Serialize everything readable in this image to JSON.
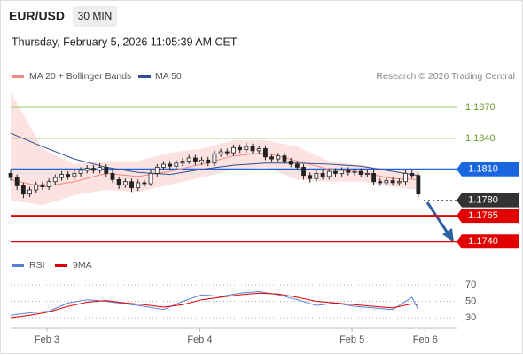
{
  "header": {
    "symbol": "EUR/USD",
    "timeframe": "30 MIN",
    "datetime": "Thursday, February 5, 2026 11:05:39 AM CET"
  },
  "chart_data": [
    {
      "type": "candlestick",
      "source": "Research © 2026 Trading Central",
      "xlim": [
        0,
        70
      ],
      "ylim": [
        1.1729,
        1.1888
      ],
      "open": [
        1.1806,
        1.1802,
        1.1794,
        1.1786,
        1.179,
        1.1795,
        1.1793,
        1.1798,
        1.1802,
        1.1805,
        1.1803,
        1.1806,
        1.1809,
        1.1811,
        1.1809,
        1.1812,
        1.1806,
        1.18,
        1.1795,
        1.1798,
        1.1792,
        1.1797,
        1.1796,
        1.1806,
        1.1812,
        1.1815,
        1.1813,
        1.1816,
        1.1818,
        1.1821,
        1.1817,
        1.1819,
        1.1816,
        1.1825,
        1.1827,
        1.1826,
        1.1831,
        1.1829,
        1.1832,
        1.1828,
        1.183,
        1.1822,
        1.182,
        1.1823,
        1.1818,
        1.1815,
        1.1812,
        1.1804,
        1.1801,
        1.1806,
        1.1803,
        1.1808,
        1.1806,
        1.1809,
        1.1807,
        1.1808,
        1.1805,
        1.1806,
        1.1798,
        1.1797,
        1.1799,
        1.1797,
        1.1798,
        1.1806,
        1.1804
      ],
      "high": [
        1.1809,
        1.1805,
        1.1797,
        1.1793,
        1.1798,
        1.1798,
        1.1801,
        1.1805,
        1.1808,
        1.1808,
        1.1809,
        1.1812,
        1.1814,
        1.1814,
        1.1816,
        1.1815,
        1.1809,
        1.1803,
        1.1801,
        1.1801,
        1.18,
        1.18,
        1.1809,
        1.1815,
        1.1818,
        1.1818,
        1.1819,
        1.1821,
        1.1824,
        1.1824,
        1.1822,
        1.1822,
        1.1828,
        1.183,
        1.183,
        1.1834,
        1.1834,
        1.1836,
        1.1835,
        1.1833,
        1.1833,
        1.1825,
        1.1826,
        1.1826,
        1.1821,
        1.1818,
        1.1815,
        1.1807,
        1.1809,
        1.1809,
        1.1811,
        1.1811,
        1.1812,
        1.1812,
        1.1811,
        1.1811,
        1.1809,
        1.1809,
        1.1801,
        1.1802,
        1.1802,
        1.1801,
        1.1809,
        1.1809,
        1.1807
      ],
      "low": [
        1.1799,
        1.179,
        1.1782,
        1.1783,
        1.1787,
        1.179,
        1.179,
        1.1795,
        1.1799,
        1.18,
        1.18,
        1.1803,
        1.1806,
        1.1806,
        1.1806,
        1.1803,
        1.1797,
        1.1791,
        1.1792,
        1.1788,
        1.1789,
        1.1793,
        1.1794,
        1.1803,
        1.1809,
        1.181,
        1.181,
        1.1813,
        1.1815,
        1.1814,
        1.1814,
        1.1813,
        1.1813,
        1.1822,
        1.1823,
        1.1823,
        1.1826,
        1.1826,
        1.1825,
        1.1825,
        1.1819,
        1.1817,
        1.1817,
        1.1815,
        1.1812,
        1.1809,
        1.18,
        1.1797,
        1.1798,
        1.18,
        1.18,
        1.1803,
        1.1803,
        1.1804,
        1.1804,
        1.1802,
        1.1802,
        1.1795,
        1.1794,
        1.1794,
        1.1794,
        1.1794,
        1.1795,
        1.1801,
        1.1783
      ],
      "close": [
        1.1802,
        1.1794,
        1.1786,
        1.179,
        1.1795,
        1.1793,
        1.1798,
        1.1802,
        1.1805,
        1.1803,
        1.1806,
        1.1809,
        1.1811,
        1.1809,
        1.1812,
        1.1806,
        1.18,
        1.1795,
        1.1798,
        1.1792,
        1.1797,
        1.1796,
        1.1806,
        1.1812,
        1.1815,
        1.1813,
        1.1816,
        1.1818,
        1.1821,
        1.1817,
        1.1819,
        1.1816,
        1.1825,
        1.1827,
        1.1826,
        1.1831,
        1.1829,
        1.1832,
        1.1828,
        1.183,
        1.1822,
        1.182,
        1.1823,
        1.1818,
        1.1815,
        1.1812,
        1.1804,
        1.1801,
        1.1806,
        1.1803,
        1.1808,
        1.1806,
        1.1809,
        1.1807,
        1.1808,
        1.1805,
        1.1806,
        1.1798,
        1.1797,
        1.1799,
        1.1797,
        1.1798,
        1.1806,
        1.1804,
        1.1786
      ],
      "series": [
        {
          "name": "MA 20 + Bollinger Bands",
          "color": "#f28b82",
          "x": [
            0,
            5,
            10,
            15,
            20,
            25,
            30,
            35,
            40,
            45,
            50,
            55,
            60,
            64
          ],
          "values": [
            1.18,
            1.1793,
            1.1798,
            1.1806,
            1.1803,
            1.1808,
            1.1815,
            1.1823,
            1.1826,
            1.1818,
            1.181,
            1.1807,
            1.1801,
            1.18
          ],
          "upper": [
            1.1885,
            1.183,
            1.1815,
            1.1818,
            1.1818,
            1.1826,
            1.183,
            1.1838,
            1.1838,
            1.1832,
            1.1818,
            1.1814,
            1.181,
            1.1808
          ],
          "lower": [
            1.178,
            1.1775,
            1.1785,
            1.179,
            1.1788,
            1.1795,
            1.1802,
            1.181,
            1.1812,
            1.18,
            1.1798,
            1.1798,
            1.1793,
            1.179
          ]
        },
        {
          "name": "MA 50",
          "color": "#2f4f8f",
          "x": [
            0,
            5,
            10,
            15,
            20,
            25,
            30,
            35,
            40,
            45,
            50,
            55,
            60,
            64
          ],
          "values": [
            1.1845,
            1.1832,
            1.182,
            1.1812,
            1.1807,
            1.1805,
            1.181,
            1.1814,
            1.1816,
            1.1816,
            1.1815,
            1.1813,
            1.1808,
            1.1804
          ]
        }
      ],
      "levels": [
        {
          "value": 1.187,
          "label": "1.1870",
          "color": "#9ccc65",
          "boxed": false
        },
        {
          "value": 1.184,
          "label": "1.1840",
          "color": "#9ccc65",
          "boxed": false
        },
        {
          "value": 1.181,
          "label": "1.1810",
          "color": "#1a66e0",
          "boxed": true
        },
        {
          "value": 1.178,
          "label": "1.1780",
          "color": "#333333",
          "boxed": true,
          "dotted": true
        },
        {
          "value": 1.1765,
          "label": "1.1765",
          "color": "#e00000",
          "boxed": true
        },
        {
          "value": 1.174,
          "label": "1.1740",
          "color": "#e00000",
          "boxed": true
        }
      ]
    },
    {
      "type": "line",
      "xlim": [
        0,
        70
      ],
      "ylim": [
        17,
        82
      ],
      "yticks": [
        30,
        50,
        70
      ],
      "xticks": [
        {
          "value": 5.7,
          "label": "Feb 3"
        },
        {
          "value": 29.7,
          "label": "Feb 4"
        },
        {
          "value": 53.6,
          "label": "Feb 5"
        },
        {
          "value": 65.1,
          "label": "Feb 6"
        }
      ],
      "x": [
        0,
        3,
        6,
        9,
        12,
        15,
        18,
        21,
        24,
        27,
        30,
        33,
        36,
        39,
        42,
        45,
        48,
        51,
        54,
        57,
        60,
        63,
        64
      ],
      "series": [
        {
          "name": "RSI",
          "color": "#5b7fd6",
          "values": [
            33,
            36,
            38,
            48,
            52,
            50,
            47,
            44,
            40,
            50,
            58,
            56,
            60,
            62,
            58,
            52,
            45,
            48,
            44,
            42,
            40,
            55,
            40
          ]
        },
        {
          "name": "9MA",
          "color": "#e00000",
          "values": [
            30,
            33,
            37,
            44,
            49,
            51,
            48,
            46,
            43,
            46,
            52,
            55,
            58,
            60,
            59,
            55,
            50,
            48,
            46,
            44,
            42,
            47,
            46
          ]
        }
      ]
    }
  ]
}
